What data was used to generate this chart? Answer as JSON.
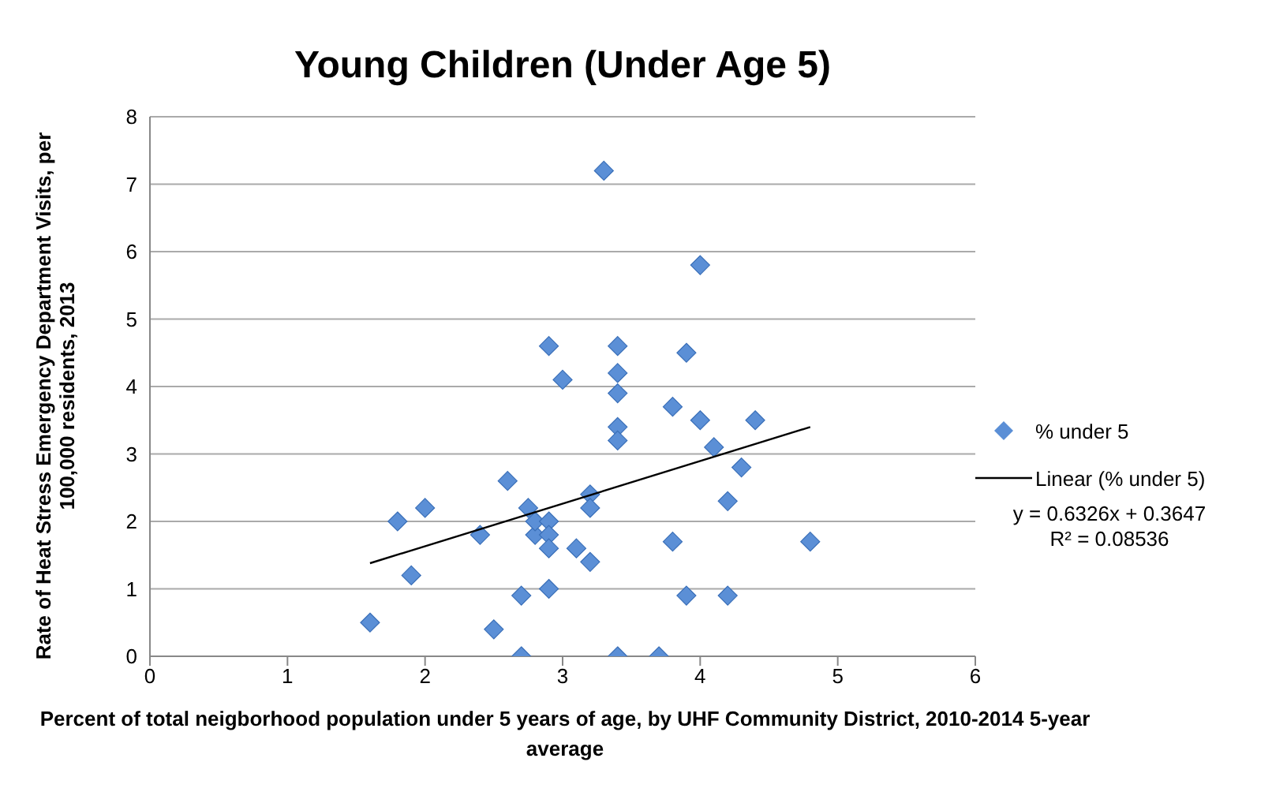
{
  "chart_data": {
    "type": "scatter",
    "title": "Young Children (Under Age 5)",
    "xlabel": "Percent of total neigborhood population under 5 years of age, by UHF Community District, 2010-2014 5-year average",
    "ylabel": "Rate of Heat Stress Emergency Department Visits, per 100,000 residents, 2013",
    "xlim": [
      0,
      6
    ],
    "xticks": [
      0,
      1,
      2,
      3,
      4,
      5,
      6
    ],
    "ylim": [
      0,
      8
    ],
    "yticks": [
      0,
      1,
      2,
      3,
      4,
      5,
      6,
      7,
      8
    ],
    "grid": "y",
    "legend": "right",
    "marker": "diamond",
    "series": [
      {
        "name": "% under 5",
        "color": "#5b8fd6",
        "x": [
          1.6,
          1.8,
          1.9,
          2.0,
          2.4,
          2.5,
          2.6,
          2.7,
          2.7,
          2.75,
          2.8,
          2.8,
          2.9,
          2.9,
          2.9,
          2.9,
          2.9,
          3.0,
          3.1,
          3.2,
          3.2,
          3.2,
          3.3,
          3.4,
          3.4,
          3.4,
          3.4,
          3.4,
          3.4,
          3.7,
          3.8,
          3.8,
          3.9,
          3.9,
          4.0,
          4.0,
          4.1,
          4.2,
          4.2,
          4.3,
          4.4,
          4.8
        ],
        "values": [
          0.5,
          2.0,
          1.2,
          2.2,
          1.8,
          0.4,
          2.6,
          0.9,
          0,
          2.2,
          1.8,
          2.0,
          2.0,
          1.8,
          1.6,
          1.0,
          4.6,
          4.1,
          1.6,
          2.4,
          2.2,
          1.4,
          7.2,
          4.6,
          4.2,
          3.9,
          3.4,
          3.2,
          0,
          0,
          3.7,
          1.7,
          4.5,
          0.9,
          5.8,
          3.5,
          3.1,
          2.3,
          0.9,
          2.8,
          3.5,
          1.7
        ]
      },
      {
        "name": "Linear (% under 5)",
        "type": "line",
        "color": "#000000",
        "marker": "none",
        "x": [
          1.6,
          4.8
        ],
        "values": [
          1.38,
          3.4
        ]
      }
    ],
    "annotations": [
      "y = 0.6326x + 0.3647",
      "R² = 0.08536"
    ]
  }
}
